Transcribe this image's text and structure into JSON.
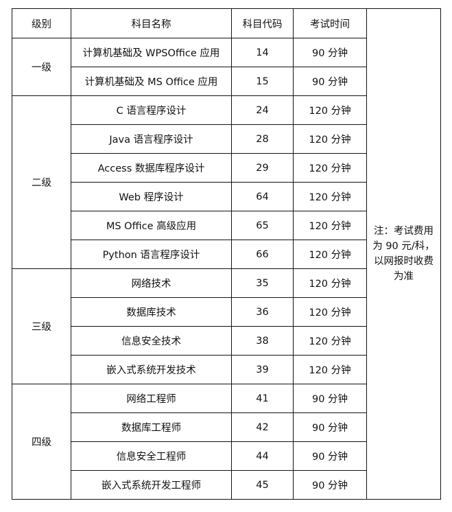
{
  "headers": [
    "级别",
    "科目名称",
    "科目代码",
    "考试时间"
  ],
  "note": "注：考试费用为 90 元/科，以网报时收费为准",
  "levels": [
    {
      "label": "一级",
      "subjects": [
        {
          "name": "计算机基础及 WPSOffice 应用",
          "code": "14",
          "time": "90 分钟"
        },
        {
          "name": "计算机基础及 MS Office 应用",
          "code": "15",
          "time": "90 分钟"
        }
      ]
    },
    {
      "label": "二级",
      "subjects": [
        {
          "name": "C 语言程序设计",
          "code": "24",
          "time": "120 分钟"
        },
        {
          "name": "Java 语言程序设计",
          "code": "28",
          "time": "120 分钟"
        },
        {
          "name": "Access 数据库程序设计",
          "code": "29",
          "time": "120 分钟"
        },
        {
          "name": "Web 程序设计",
          "code": "64",
          "time": "120 分钟"
        },
        {
          "name": "MS Office 高级应用",
          "code": "65",
          "time": "120 分钟"
        },
        {
          "name": "Python 语言程序设计",
          "code": "66",
          "time": "120 分钟"
        }
      ]
    },
    {
      "label": "三级",
      "subjects": [
        {
          "name": "网络技术",
          "code": "35",
          "time": "120 分钟"
        },
        {
          "name": "数据库技术",
          "code": "36",
          "time": "120 分钟"
        },
        {
          "name": "信息安全技术",
          "code": "38",
          "time": "120 分钟"
        },
        {
          "name": "嵌入式系统开发技术",
          "code": "39",
          "time": "120 分钟"
        }
      ]
    },
    {
      "label": "四级",
      "subjects": [
        {
          "name": "网络工程师",
          "code": "41",
          "time": "90 分钟"
        },
        {
          "name": "数据库工程师",
          "code": "42",
          "time": "90 分钟"
        },
        {
          "name": "信息安全工程师",
          "code": "44",
          "time": "90 分钟"
        },
        {
          "name": "嵌入式系统开发工程师",
          "code": "45",
          "time": "90 分钟"
        }
      ]
    }
  ]
}
